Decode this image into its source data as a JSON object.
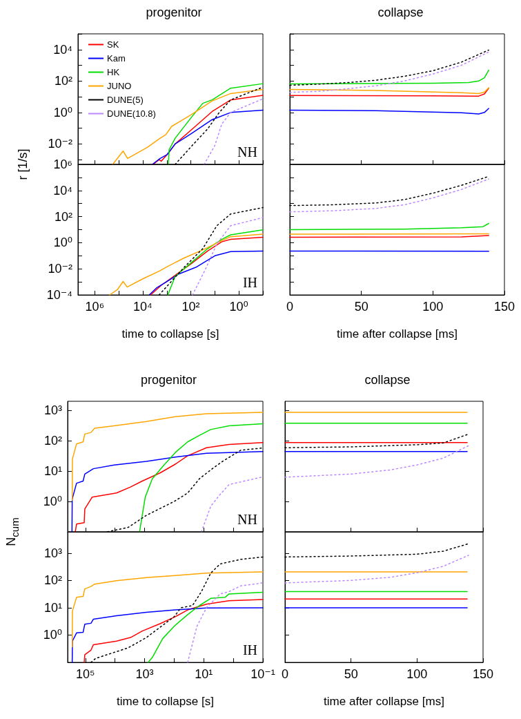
{
  "chart_data": [
    {
      "type": "line",
      "title": "progenitor",
      "ylabel": "r [1/s]",
      "annotations": [
        "NH"
      ],
      "legend": "top left",
      "log": "xy",
      "tick_labels": "y",
      "xlim": [
        5000000,
        0.1
      ],
      "xticks": [
        {
          "value": 1000000,
          "label": null
        },
        {
          "value": 100000,
          "label": null
        },
        {
          "value": 10000,
          "label": null
        },
        {
          "value": 1000,
          "label": null
        },
        {
          "value": 100,
          "label": null
        },
        {
          "value": 10,
          "label": null
        },
        {
          "value": 1,
          "label": null
        },
        {
          "value": 0.1,
          "label": null
        }
      ],
      "ylim": [
        0.0005,
        100000
      ],
      "yticks": [
        {
          "value": 100000,
          "label": null
        },
        {
          "value": 10000,
          "label": "10⁴"
        },
        {
          "value": 1000,
          "label": null
        },
        {
          "value": 100,
          "label": "10²"
        },
        {
          "value": 10,
          "label": null
        },
        {
          "value": 1,
          "label": "10⁰"
        },
        {
          "value": 0.1,
          "label": null
        },
        {
          "value": 0.01,
          "label": "10⁻²"
        },
        {
          "value": 0.001,
          "label": null
        }
      ],
      "series": [
        {
          "name": "SK",
          "color": "#ff0000",
          "x": [
            3700,
            2100,
            1700,
            870,
            450,
            76,
            13,
            2.2,
            0.1
          ],
          "values": [
            0.0005,
            0.001,
            0.0008,
            0.0025,
            0.01,
            0.107,
            1.15,
            6.3,
            12.3
          ]
        },
        {
          "name": "Kam",
          "color": "#0000ff",
          "x": [
            4000,
            1900,
            980,
            450,
            95,
            13,
            2.2,
            0.1
          ],
          "values": [
            0.0005,
            0.0012,
            0.0021,
            0.01,
            0.046,
            0.35,
            1.0,
            1.4
          ]
        },
        {
          "name": "HK",
          "color": "#00dd00",
          "x": [
            870,
            800,
            450,
            95,
            32,
            13,
            2.2,
            0.1
          ],
          "values": [
            0.0005,
            0.0043,
            0.023,
            0.49,
            3.8,
            6.3,
            35,
            68
          ]
        },
        {
          "name": "JUNO",
          "color": "#ffa500",
          "x": [
            180000,
            66000,
            43000,
            6500,
            1900,
            1100,
            630,
            95,
            13,
            2.2,
            0.1
          ],
          "values": [
            0.0005,
            0.0035,
            0.0012,
            0.006,
            0.023,
            0.039,
            0.13,
            0.74,
            5.4,
            16,
            29
          ]
        },
        {
          "name": "DUNE(5)",
          "color": "#000000",
          "line_style": "dotted",
          "x": [
            450,
            95,
            20,
            6.6,
            2.2,
            0.1
          ],
          "values": [
            0.0005,
            0.007,
            0.09,
            1.0,
            6.3,
            41
          ]
        },
        {
          "name": "DUNE(10.8)",
          "color": "#bb88ff",
          "line_style": "dotted",
          "x": [
            28,
            10,
            5.2,
            2.2,
            0.1
          ],
          "values": [
            0.0005,
            0.008,
            0.18,
            1.0,
            7.4
          ]
        }
      ]
    },
    {
      "type": "line",
      "xlabel": "time to collapse [s]",
      "annotations": [
        "IH"
      ],
      "log": "xy",
      "xlim": [
        5000000,
        0.1
      ],
      "xticks": [
        {
          "value": 1000000,
          "label": "10⁶"
        },
        {
          "value": 100000,
          "label": null
        },
        {
          "value": 10000,
          "label": "10⁴"
        },
        {
          "value": 1000,
          "label": null
        },
        {
          "value": 100,
          "label": "10²"
        },
        {
          "value": 10,
          "label": null
        },
        {
          "value": 1,
          "label": "10⁰"
        },
        {
          "value": 0.1,
          "label": null
        }
      ],
      "ylim": [
        0.0001,
        1000000
      ],
      "yticks": [
        {
          "value": 1000000,
          "label": "10⁶"
        },
        {
          "value": 100000,
          "label": null
        },
        {
          "value": 10000,
          "label": "10⁴"
        },
        {
          "value": 1000,
          "label": null
        },
        {
          "value": 100,
          "label": "10²"
        },
        {
          "value": 10,
          "label": null
        },
        {
          "value": 1,
          "label": "10⁰"
        },
        {
          "value": 0.1,
          "label": null
        },
        {
          "value": 0.01,
          "label": "10⁻²"
        },
        {
          "value": 0.001,
          "label": null
        },
        {
          "value": 0.0001,
          "label": "10⁻⁴"
        }
      ],
      "series": [
        {
          "color": "#ff0000",
          "x": [
            4700,
            1700,
            450,
            95,
            20,
            5.2,
            2.2,
            0.1
          ],
          "values": [
            0.0001,
            0.00055,
            0.0032,
            0.025,
            0.23,
            1.17,
            1.8,
            2.6
          ]
        },
        {
          "color": "#0000ff",
          "x": [
            5400,
            2700,
            1100,
            320,
            62,
            10,
            2.2,
            0.1
          ],
          "values": [
            0.0001,
            0.00034,
            0.00093,
            0.004,
            0.013,
            0.1,
            0.21,
            0.23
          ]
        },
        {
          "color": "#00dd00",
          "x": [
            910,
            450,
            95,
            20,
            5.2,
            2.2,
            0.1
          ],
          "values": [
            0.0001,
            0.0026,
            0.03,
            0.35,
            1.8,
            4.0,
            9.8
          ]
        },
        {
          "color": "#ffa500",
          "x": [
            240000,
            115000,
            66000,
            45000,
            10000,
            1900,
            1100,
            190,
            32,
            6.6,
            2.2,
            0.1
          ],
          "values": [
            0.0001,
            0.00025,
            0.00107,
            0.0004,
            0.0017,
            0.0072,
            0.013,
            0.068,
            0.28,
            1.17,
            2.9,
            4.5
          ]
        },
        {
          "color": "#000000",
          "line_style": "dotted",
          "x": [
            2100,
            190,
            32,
            8.3,
            2.2,
            0.1
          ],
          "values": [
            0.0001,
            0.013,
            0.35,
            20,
            160,
            490
          ]
        },
        {
          "color": "#bb88ff",
          "line_style": "dotted",
          "x": [
            85,
            25,
            8.3,
            2.2,
            0.1
          ],
          "values": [
            0.0001,
            0.0089,
            0.8,
            20,
            85
          ]
        }
      ]
    },
    {
      "type": "line",
      "title": "collapse",
      "tick_labels": false,
      "log": "y",
      "xlim": [
        0,
        150
      ],
      "xticks": [
        {
          "value": 0,
          "label": null
        },
        {
          "value": 50,
          "label": null
        },
        {
          "value": 100,
          "label": null
        },
        {
          "value": 150,
          "label": null
        }
      ],
      "ylim": [
        0.0005,
        100000
      ],
      "yticks": [
        {
          "value": 100000,
          "label": null
        },
        {
          "value": 10000,
          "label": null
        },
        {
          "value": 1000,
          "label": null
        },
        {
          "value": 100,
          "label": null
        },
        {
          "value": 10,
          "label": null
        },
        {
          "value": 1,
          "label": null
        },
        {
          "value": 0.1,
          "label": null
        },
        {
          "value": 0.01,
          "label": null
        },
        {
          "value": 0.001,
          "label": null
        }
      ],
      "series": [
        {
          "color": "#ff0000",
          "x": [
            0,
            100,
            132,
            136,
            139
          ],
          "values": [
            12,
            11.5,
            11,
            15,
            35
          ]
        },
        {
          "color": "#0000ff",
          "x": [
            0,
            60,
            120,
            132,
            136,
            139
          ],
          "values": [
            1.4,
            1.3,
            0.95,
            0.8,
            1.0,
            1.8
          ]
        },
        {
          "color": "#00dd00",
          "x": [
            0,
            100,
            125,
            132,
            136,
            139
          ],
          "values": [
            66,
            72,
            80,
            100,
            160,
            490
          ]
        },
        {
          "color": "#ffa500",
          "x": [
            0,
            60,
            120,
            132,
            136,
            139
          ],
          "values": [
            29,
            25,
            18,
            16,
            20,
            37
          ]
        },
        {
          "color": "#000000",
          "line_style": "dotted",
          "x": [
            0,
            20,
            40,
            60,
            80,
            100,
            120,
            139
          ],
          "values": [
            54,
            63,
            79,
            112,
            200,
            450,
            1600,
            9300
          ]
        },
        {
          "color": "#bb88ff",
          "line_style": "dotted",
          "x": [
            0,
            20,
            40,
            60,
            80,
            100,
            120,
            139
          ],
          "values": [
            19,
            22,
            32,
            50,
            100,
            280,
            1000,
            7000
          ]
        }
      ]
    },
    {
      "type": "line",
      "xlabel": "time after collapse [ms]",
      "tick_labels": "x",
      "log": "y",
      "xlim": [
        0,
        150
      ],
      "xticks": [
        0,
        50,
        100,
        150
      ],
      "ylim": [
        0.0001,
        1000000
      ],
      "yticks": [
        {
          "value": 1000000,
          "label": null
        },
        {
          "value": 100000,
          "label": null
        },
        {
          "value": 10000,
          "label": null
        },
        {
          "value": 1000,
          "label": null
        },
        {
          "value": 100,
          "label": null
        },
        {
          "value": 10,
          "label": null
        },
        {
          "value": 1,
          "label": null
        },
        {
          "value": 0.1,
          "label": null
        },
        {
          "value": 0.01,
          "label": null
        },
        {
          "value": 0.001,
          "label": null
        },
        {
          "value": 0.0001,
          "label": null
        }
      ],
      "series": [
        {
          "color": "#ff0000",
          "x": [
            0,
            120,
            139
          ],
          "values": [
            2.6,
            2.8,
            3.6
          ]
        },
        {
          "color": "#0000ff",
          "x": [
            0,
            139
          ],
          "values": [
            0.23,
            0.22
          ]
        },
        {
          "color": "#00dd00",
          "x": [
            0,
            80,
            120,
            135,
            139
          ],
          "values": [
            10,
            11,
            14,
            17,
            30
          ]
        },
        {
          "color": "#ffa500",
          "x": [
            0,
            139
          ],
          "values": [
            4.5,
            4.8
          ]
        },
        {
          "color": "#000000",
          "line_style": "dotted",
          "x": [
            0,
            30,
            60,
            80,
            100,
            120,
            139
          ],
          "values": [
            700,
            800,
            1100,
            2000,
            6200,
            25000,
            120000
          ]
        },
        {
          "color": "#bb88ff",
          "line_style": "dotted",
          "x": [
            0,
            30,
            60,
            80,
            100,
            120,
            139
          ],
          "values": [
            230,
            280,
            420,
            800,
            2700,
            12000,
            76000
          ]
        }
      ]
    },
    {
      "type": "line",
      "title": "progenitor",
      "ylabel": "N$_{cum}$",
      "annotations": [
        "NH"
      ],
      "log": "xy",
      "tick_labels": "y",
      "xlim": [
        400000,
        0.1
      ],
      "xticks": [
        {
          "value": 100000,
          "label": null
        },
        {
          "value": 10000,
          "label": null
        },
        {
          "value": 1000,
          "label": null
        },
        {
          "value": 100,
          "label": null
        },
        {
          "value": 10,
          "label": null
        },
        {
          "value": 1,
          "label": null
        },
        {
          "value": 0.1,
          "label": null
        }
      ],
      "ylim": [
        0.1,
        2000
      ],
      "yticks": [
        {
          "value": 1,
          "label": "10⁰"
        },
        {
          "value": 10,
          "label": "10¹"
        },
        {
          "value": 100,
          "label": "10²"
        },
        {
          "value": 1000,
          "label": "10³"
        }
      ],
      "series": [
        {
          "color": "#ff0000",
          "x": [
            220000,
            200000,
            110000,
            105000,
            59000,
            8900,
            3000,
            1200,
            300,
            91,
            35,
            8.1,
            1.4,
            0.1
          ],
          "values": [
            0.1,
            0.18,
            0.2,
            0.57,
            1.4,
            1.9,
            3.0,
            4.7,
            8.7,
            17,
            32,
            59,
            76,
            87
          ]
        },
        {
          "color": "#0000ff",
          "x": [
            285000,
            280000,
            200000,
            120000,
            105000,
            54000,
            10700,
            870,
            91,
            8.1,
            0.1
          ],
          "values": [
            0.1,
            1.2,
            4,
            4.7,
            8,
            12,
            16,
            21,
            29,
            39,
            44
          ]
        },
        {
          "color": "#00dd00",
          "x": [
            1480,
            950,
            550,
            220,
            85,
            35,
            14,
            5.8,
            1.4,
            0.1
          ],
          "values": [
            0.1,
            1.4,
            5.6,
            16,
            44,
            92,
            150,
            235,
            310,
            365
          ]
        },
        {
          "color": "#ffa500",
          "x": [
            280000,
            275000,
            200000,
            120000,
            105000,
            65000,
            49000,
            10700,
            870,
            91,
            8.1,
            0.1
          ],
          "values": [
            1.1,
            25,
            79,
            92,
            167,
            188,
            260,
            310,
            430,
            620,
            780,
            870
          ]
        },
        {
          "color": "#000000",
          "line_style": "dotted",
          "x": [
            18000,
            3600,
            870,
            100,
            35,
            14,
            5.8,
            2.3,
            0.56,
            0.1
          ],
          "values": [
            0.1,
            0.14,
            0.35,
            1.0,
            1.9,
            5.6,
            11,
            21,
            49,
            58
          ]
        },
        {
          "color": "#bb88ff",
          "line_style": "dotted",
          "x": [
            12,
            5.8,
            2.8,
            1.4,
            0.1
          ],
          "values": [
            0.1,
            0.7,
            1.7,
            3.6,
            6.5
          ]
        }
      ]
    },
    {
      "type": "line",
      "xlabel": "time to collapse [s]",
      "annotations": [
        "IH"
      ],
      "log": "xy",
      "xlim": [
        400000,
        0.1
      ],
      "xticks": [
        {
          "value": 100000,
          "label": "10⁵"
        },
        {
          "value": 10000,
          "label": null
        },
        {
          "value": 1000,
          "label": "10³"
        },
        {
          "value": 100,
          "label": null
        },
        {
          "value": 10,
          "label": "10¹"
        },
        {
          "value": 1,
          "label": null
        },
        {
          "value": 0.1,
          "label": "10⁻¹"
        }
      ],
      "ylim": [
        0.1,
        6000
      ],
      "yticks": [
        {
          "value": 1,
          "label": "10⁰"
        },
        {
          "value": 10,
          "label": "10¹"
        },
        {
          "value": 100,
          "label": "10²"
        },
        {
          "value": 1000,
          "label": "10³"
        }
      ],
      "series": [
        {
          "color": "#ff0000",
          "x": [
            110000,
            105000,
            65000,
            54000,
            8900,
            3000,
            1200,
            300,
            91,
            35,
            8.1,
            1.4,
            0.1
          ],
          "values": [
            0.1,
            0.19,
            0.28,
            0.44,
            0.6,
            0.81,
            1.4,
            2.6,
            4.7,
            8.3,
            13.5,
            18,
            20
          ]
        },
        {
          "color": "#0000ff",
          "x": [
            280000,
            275000,
            200000,
            120000,
            105000,
            65000,
            54000,
            8900,
            870,
            91,
            8.1,
            0.1
          ],
          "values": [
            0.1,
            0.6,
            1.2,
            1.25,
            2.5,
            2.7,
            3.8,
            5.1,
            6.8,
            8.3,
            9.8,
            10
          ]
        },
        {
          "color": "#00dd00",
          "x": [
            760,
            550,
            245,
            100,
            35,
            14,
            5.8,
            1.9,
            1.4,
            0.1
          ],
          "values": [
            0.1,
            0.15,
            0.74,
            2.1,
            5.6,
            12,
            22,
            24,
            32,
            37
          ]
        },
        {
          "color": "#ffa500",
          "x": [
            280000,
            275000,
            200000,
            120000,
            105000,
            65000,
            49000,
            8900,
            870,
            91,
            8.1,
            0.1
          ],
          "values": [
            0.37,
            7.6,
            24,
            26,
            49,
            60,
            73,
            97,
            126,
            152,
            185,
            204
          ]
        },
        {
          "color": "#000000",
          "line_style": "dotted",
          "x": [
            65000,
            45000,
            3600,
            870,
            100,
            59,
            24,
            12,
            5.8,
            2.8,
            0.56,
            0.1
          ],
          "values": [
            0.1,
            0.14,
            0.34,
            0.81,
            4.7,
            10,
            12,
            39,
            185,
            400,
            590,
            720
          ]
        },
        {
          "color": "#bb88ff",
          "line_style": "dotted",
          "x": [
            35,
            17,
            8.1,
            2.8,
            1.4,
            0.56,
            0.1
          ],
          "values": [
            0.1,
            2.1,
            10,
            32,
            39,
            63,
            81
          ]
        }
      ]
    },
    {
      "type": "line",
      "title": "collapse",
      "tick_labels": false,
      "log": "y",
      "xlim": [
        0,
        150
      ],
      "xticks": [
        {
          "value": 0,
          "label": null
        },
        {
          "value": 50,
          "label": null
        },
        {
          "value": 100,
          "label": null
        },
        {
          "value": 150,
          "label": null
        }
      ],
      "ylim": [
        0.1,
        2000
      ],
      "yticks": [
        {
          "value": 1,
          "label": null
        },
        {
          "value": 10,
          "label": null
        },
        {
          "value": 100,
          "label": null
        },
        {
          "value": 1000,
          "label": null
        }
      ],
      "series": [
        {
          "color": "#ff0000",
          "x": [
            0,
            138
          ],
          "values": [
            87,
            87
          ]
        },
        {
          "color": "#0000ff",
          "x": [
            0,
            138
          ],
          "values": [
            44,
            44
          ]
        },
        {
          "color": "#00dd00",
          "x": [
            0,
            138
          ],
          "values": [
            380,
            380
          ]
        },
        {
          "color": "#ffa500",
          "x": [
            0,
            138
          ],
          "values": [
            870,
            870
          ]
        },
        {
          "color": "#000000",
          "line_style": "dotted",
          "x": [
            0,
            50,
            100,
            120,
            139
          ],
          "values": [
            59,
            63,
            74,
            85,
            166
          ]
        },
        {
          "color": "#bb88ff",
          "line_style": "dotted",
          "x": [
            0,
            50,
            80,
            100,
            120,
            139
          ],
          "values": [
            6.3,
            8,
            11,
            16,
            27,
            69
          ]
        }
      ]
    },
    {
      "type": "line",
      "xlabel": "time after collapse [ms]",
      "tick_labels": "x",
      "log": "y",
      "xlim": [
        0,
        150
      ],
      "xticks": [
        0,
        50,
        100,
        150
      ],
      "ylim": [
        0.1,
        6000
      ],
      "yticks": [
        {
          "value": 1,
          "label": null
        },
        {
          "value": 10,
          "label": null
        },
        {
          "value": 100,
          "label": null
        },
        {
          "value": 1000,
          "label": null
        }
      ],
      "series": [
        {
          "color": "#ff0000",
          "x": [
            0,
            138
          ],
          "values": [
            21,
            21
          ]
        },
        {
          "color": "#0000ff",
          "x": [
            0,
            138
          ],
          "values": [
            10,
            10
          ]
        },
        {
          "color": "#00dd00",
          "x": [
            0,
            138
          ],
          "values": [
            39,
            39
          ]
        },
        {
          "color": "#ffa500",
          "x": [
            0,
            138
          ],
          "values": [
            204,
            204
          ]
        },
        {
          "color": "#000000",
          "line_style": "dotted",
          "x": [
            0,
            50,
            100,
            120,
            139
          ],
          "values": [
            720,
            780,
            910,
            1180,
            2200
          ]
        },
        {
          "color": "#bb88ff",
          "line_style": "dotted",
          "x": [
            0,
            50,
            80,
            100,
            120,
            139
          ],
          "values": [
            81,
            100,
            130,
            190,
            330,
            830
          ]
        }
      ]
    }
  ]
}
